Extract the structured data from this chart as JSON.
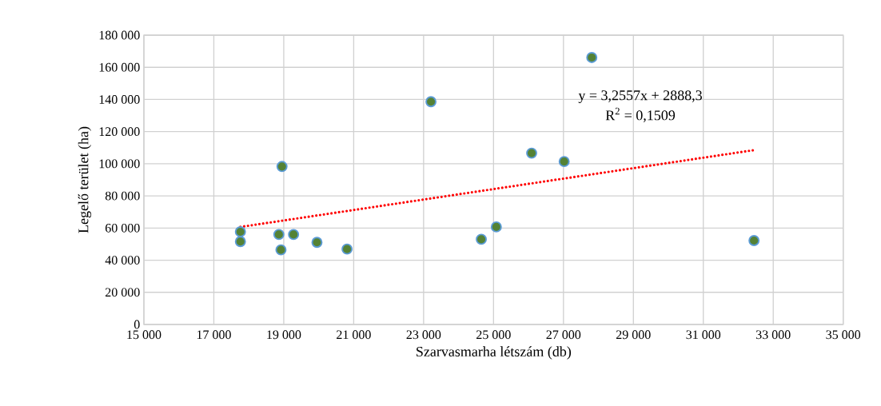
{
  "chart_data": {
    "type": "scatter",
    "xlabel": "Szarvasmarha létszám (db)",
    "ylabel": "Legelő terület (ha)",
    "xlim": [
      15000,
      35000
    ],
    "xticks": [
      {
        "value": 15000,
        "label": "15 000"
      },
      {
        "value": 17000,
        "label": "17 000"
      },
      {
        "value": 19000,
        "label": "19 000"
      },
      {
        "value": 21000,
        "label": "21 000"
      },
      {
        "value": 23000,
        "label": "23 000"
      },
      {
        "value": 25000,
        "label": "25 000"
      },
      {
        "value": 27000,
        "label": "27 000"
      },
      {
        "value": 29000,
        "label": "29 000"
      },
      {
        "value": 31000,
        "label": "31 000"
      },
      {
        "value": 33000,
        "label": "33 000"
      },
      {
        "value": 35000,
        "label": "35 000"
      }
    ],
    "ylim": [
      0,
      180000
    ],
    "yticks": [
      0,
      {
        "value": 20000,
        "label": "20 000"
      },
      {
        "value": 40000,
        "label": "40 000"
      },
      {
        "value": 60000,
        "label": "60 000"
      },
      {
        "value": 80000,
        "label": "80 000"
      },
      {
        "value": 100000,
        "label": "100 000"
      },
      {
        "value": 120000,
        "label": "120 000"
      },
      {
        "value": 140000,
        "label": "140 000"
      },
      {
        "value": 160000,
        "label": "160 000"
      },
      {
        "value": 180000,
        "label": "180 000"
      }
    ],
    "grid": true,
    "series": [
      {
        "marker": "circle",
        "color": "#548235",
        "x": [
          17760,
          17760,
          18860,
          18920,
          18950,
          19280,
          19950,
          20810,
          23210,
          24650,
          25080,
          26090,
          27020,
          27810,
          32450
        ],
        "values": [
          57700,
          51600,
          56000,
          46400,
          98300,
          56000,
          51100,
          46900,
          138600,
          53000,
          60700,
          106600,
          101400,
          166100,
          52200
        ]
      },
      {
        "type": "line",
        "color": "#ff0000",
        "line_style": "dotted",
        "marker": "none",
        "x": [
          17760,
          32450
        ],
        "values": [
          60700,
          108500
        ]
      }
    ],
    "annotations": [
      "y = 3,2557x + 2888,3",
      "R$^{2}$ = 0,1509"
    ]
  }
}
